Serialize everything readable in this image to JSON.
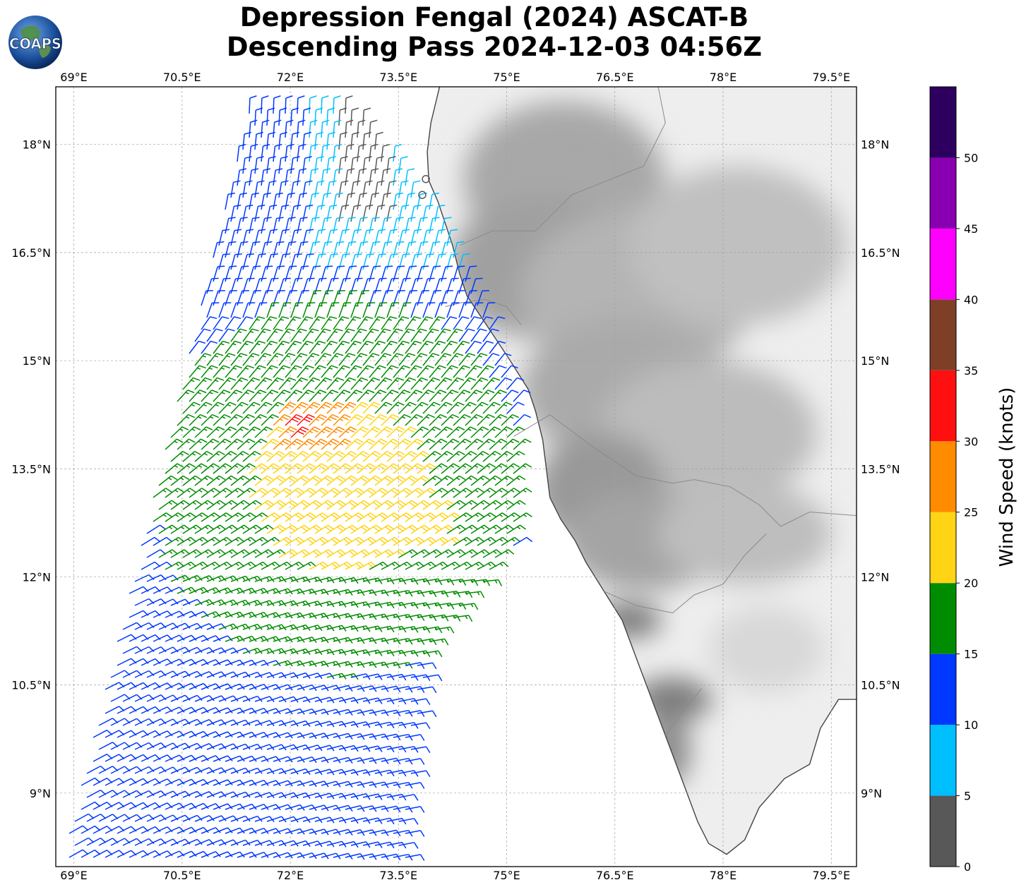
{
  "title": {
    "line1": "Depression Fengal (2024) ASCAT-B",
    "line2": "Descending Pass 2024-12-03 04:56Z"
  },
  "logo": {
    "text": "COAPS",
    "icon": "globe-icon"
  },
  "map": {
    "lon_range": [
      68.75,
      79.85
    ],
    "lat_range": [
      7.98,
      18.8
    ],
    "lon_ticks": [
      {
        "value": 69,
        "label": "69°E"
      },
      {
        "value": 70.5,
        "label": "70.5°E"
      },
      {
        "value": 72,
        "label": "72°E"
      },
      {
        "value": 73.5,
        "label": "73.5°E"
      },
      {
        "value": 75,
        "label": "75°E"
      },
      {
        "value": 76.5,
        "label": "76.5°E"
      },
      {
        "value": 78,
        "label": "78°E"
      },
      {
        "value": 79.5,
        "label": "79.5°E"
      }
    ],
    "lat_ticks": [
      {
        "value": 18,
        "label": "18°N"
      },
      {
        "value": 16.5,
        "label": "16.5°N"
      },
      {
        "value": 15,
        "label": "15°N"
      },
      {
        "value": 13.5,
        "label": "13.5°N"
      },
      {
        "value": 12,
        "label": "12°N"
      },
      {
        "value": 10.5,
        "label": "10.5°N"
      },
      {
        "value": 9,
        "label": "9°N"
      }
    ],
    "grid": true,
    "coastline": [
      [
        74.07,
        18.8
      ],
      [
        73.95,
        18.3
      ],
      [
        73.9,
        17.9
      ],
      [
        73.92,
        17.5
      ],
      [
        74.05,
        17.2
      ],
      [
        74.15,
        16.9
      ],
      [
        74.25,
        16.6
      ],
      [
        74.35,
        16.2
      ],
      [
        74.45,
        15.9
      ],
      [
        74.65,
        15.6
      ],
      [
        74.85,
        15.3
      ],
      [
        75.05,
        15.0
      ],
      [
        75.3,
        14.6
      ],
      [
        75.4,
        14.3
      ],
      [
        75.5,
        13.9
      ],
      [
        75.55,
        13.5
      ],
      [
        75.6,
        13.1
      ],
      [
        75.75,
        12.8
      ],
      [
        75.95,
        12.5
      ],
      [
        76.1,
        12.2
      ],
      [
        76.35,
        11.8
      ],
      [
        76.6,
        11.4
      ],
      [
        76.75,
        11.0
      ],
      [
        76.9,
        10.6
      ],
      [
        77.05,
        10.2
      ],
      [
        77.2,
        9.8
      ],
      [
        77.35,
        9.4
      ],
      [
        77.5,
        9.0
      ],
      [
        77.65,
        8.6
      ],
      [
        77.8,
        8.3
      ],
      [
        78.05,
        8.15
      ],
      [
        78.3,
        8.35
      ],
      [
        78.5,
        8.8
      ],
      [
        78.85,
        9.2
      ],
      [
        79.2,
        9.4
      ],
      [
        79.35,
        9.9
      ],
      [
        79.6,
        10.3
      ],
      [
        79.85,
        10.3
      ]
    ],
    "state_borders": [
      [
        [
          74.15,
          15.75
        ],
        [
          74.35,
          15.8
        ],
        [
          74.7,
          15.85
        ],
        [
          75.0,
          15.75
        ],
        [
          75.2,
          15.5
        ]
      ],
      [
        [
          74.35,
          16.6
        ],
        [
          74.8,
          16.8
        ],
        [
          75.4,
          16.8
        ],
        [
          75.9,
          17.3
        ],
        [
          76.4,
          17.5
        ],
        [
          76.9,
          17.7
        ],
        [
          77.2,
          18.3
        ],
        [
          77.1,
          18.8
        ]
      ],
      [
        [
          75.1,
          13.95
        ],
        [
          75.6,
          14.25
        ],
        [
          76.2,
          13.8
        ],
        [
          76.8,
          13.4
        ],
        [
          77.3,
          13.3
        ],
        [
          77.6,
          13.35
        ],
        [
          78.1,
          13.25
        ],
        [
          78.5,
          13.0
        ],
        [
          78.8,
          12.7
        ],
        [
          79.2,
          12.9
        ],
        [
          79.85,
          12.85
        ]
      ],
      [
        [
          76.35,
          11.8
        ],
        [
          76.8,
          11.6
        ],
        [
          77.3,
          11.5
        ],
        [
          77.6,
          11.75
        ],
        [
          78.0,
          11.9
        ],
        [
          78.3,
          12.3
        ],
        [
          78.6,
          12.6
        ]
      ],
      [
        [
          77.2,
          9.8
        ],
        [
          77.5,
          10.2
        ],
        [
          77.7,
          10.45
        ]
      ]
    ],
    "terrain_shading": [
      {
        "lon": 75.8,
        "lat": 17.5,
        "rx": 1.4,
        "ry": 1.1,
        "shade": "#a8a8a8"
      },
      {
        "lon": 75.5,
        "lat": 16.3,
        "rx": 1.3,
        "ry": 1.0,
        "shade": "#a0a0a0"
      },
      {
        "lon": 76.8,
        "lat": 15.9,
        "rx": 1.6,
        "ry": 1.2,
        "shade": "#b4b4b4"
      },
      {
        "lon": 78.2,
        "lat": 16.6,
        "rx": 1.5,
        "ry": 1.1,
        "shade": "#c0c0c0"
      },
      {
        "lon": 76.6,
        "lat": 14.6,
        "rx": 1.4,
        "ry": 1.0,
        "shade": "#aaaaaa"
      },
      {
        "lon": 77.8,
        "lat": 14.0,
        "rx": 1.5,
        "ry": 1.0,
        "shade": "#bcbcbc"
      },
      {
        "lon": 76.3,
        "lat": 13.2,
        "rx": 0.9,
        "ry": 0.8,
        "shade": "#999999"
      },
      {
        "lon": 76.9,
        "lat": 12.5,
        "rx": 1.1,
        "ry": 0.7,
        "shade": "#a4a4a4"
      },
      {
        "lon": 78.3,
        "lat": 12.6,
        "rx": 1.2,
        "ry": 0.7,
        "shade": "#bebebe"
      },
      {
        "lon": 76.7,
        "lat": 11.4,
        "rx": 0.45,
        "ry": 0.25,
        "shade": "#7a7a7a"
      },
      {
        "lon": 77.3,
        "lat": 10.3,
        "rx": 0.55,
        "ry": 0.3,
        "shade": "#7c7c7c"
      },
      {
        "lon": 77.25,
        "lat": 9.6,
        "rx": 0.3,
        "ry": 0.5,
        "shade": "#8a8a8a"
      },
      {
        "lon": 78.6,
        "lat": 11.0,
        "rx": 0.8,
        "ry": 0.6,
        "shade": "#d8d8d8"
      }
    ],
    "swath": {
      "corners": [
        [
          71.55,
          18.5
        ],
        [
          72.8,
          18.5
        ],
        [
          74.2,
          16.2
        ],
        [
          75.0,
          12.4
        ],
        [
          73.7,
          7.98
        ],
        [
          70.85,
          7.98
        ],
        [
          68.75,
          7.98
        ],
        [
          68.75,
          8.6
        ],
        [
          71.55,
          18.5
        ]
      ],
      "clip": [
        [
          71.45,
          18.52
        ],
        [
          72.85,
          18.52
        ],
        [
          73.6,
          17.6
        ],
        [
          74.45,
          16.3
        ],
        [
          75.1,
          14.5
        ],
        [
          75.1,
          12.4
        ],
        [
          73.9,
          11.0
        ],
        [
          73.65,
          9.0
        ],
        [
          73.68,
          7.98
        ],
        [
          68.82,
          7.98
        ],
        [
          68.82,
          8.1
        ]
      ]
    }
  },
  "legend": {
    "label": "Wind Speed (knots)",
    "ticks": [
      "0",
      "5",
      "10",
      "15",
      "20",
      "25",
      "30",
      "35",
      "40",
      "45",
      "50"
    ],
    "bins": [
      {
        "min": 0,
        "max": 5,
        "color": "#585858"
      },
      {
        "min": 5,
        "max": 10,
        "color": "#00bfff"
      },
      {
        "min": 10,
        "max": 15,
        "color": "#0038ff"
      },
      {
        "min": 15,
        "max": 20,
        "color": "#008c00"
      },
      {
        "min": 20,
        "max": 25,
        "color": "#ffd414"
      },
      {
        "min": 25,
        "max": 30,
        "color": "#ff8c00"
      },
      {
        "min": 30,
        "max": 35,
        "color": "#ff1010"
      },
      {
        "min": 35,
        "max": 40,
        "color": "#7f3f26"
      },
      {
        "min": 40,
        "max": 45,
        "color": "#ff00ff"
      },
      {
        "min": 45,
        "max": 50,
        "color": "#8800b0"
      },
      {
        "min": 50,
        "max": 55,
        "color": "#2d0060"
      }
    ]
  },
  "colors": {
    "land": "#eeeeee",
    "coastline": "#444444",
    "border": "#8a8a8a",
    "grid": "#a0a0a0"
  }
}
